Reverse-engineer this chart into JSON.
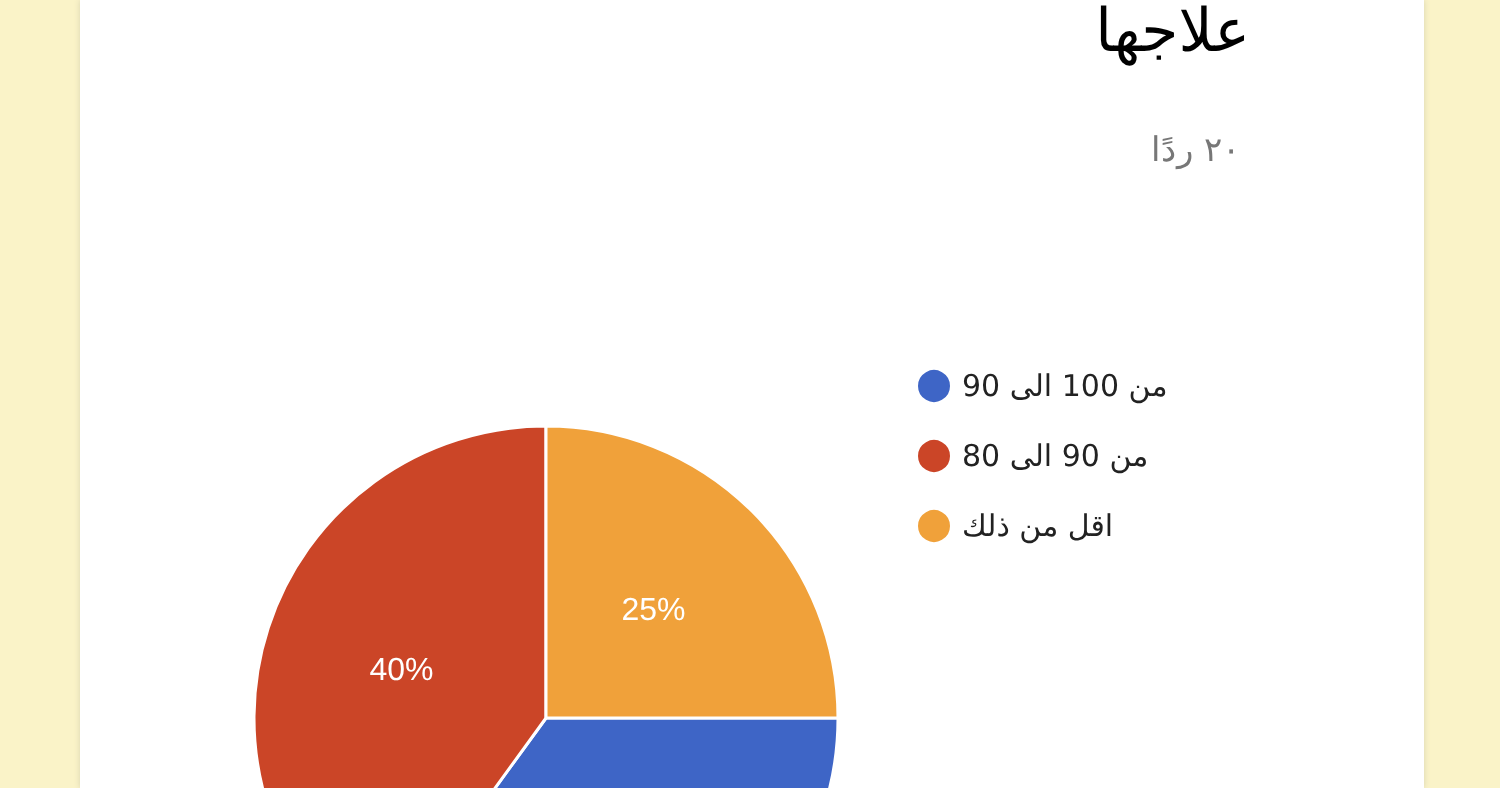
{
  "chart_data": {
    "type": "pie",
    "title": "علاجها",
    "subtitle": "٢٠ ردًا",
    "categories": [
      "من 100 الى 90",
      "من 90 الى 80",
      "اقل من ذلك"
    ],
    "values": [
      35,
      40,
      25
    ],
    "colors": [
      "#3e65c6",
      "#cb4527",
      "#f0a13a"
    ],
    "value_labels": [
      null,
      "40%",
      "25%"
    ],
    "legend": "right"
  }
}
